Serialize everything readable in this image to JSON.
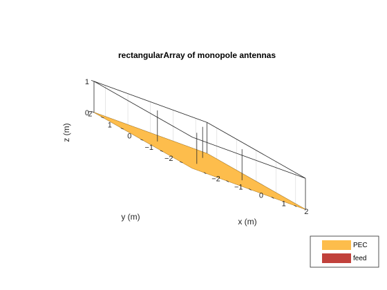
{
  "chart_data": {
    "type": "3d-surface",
    "title": "rectangularArray of monopole antennas",
    "xlabel": "x (m)",
    "ylabel": "y (m)",
    "zlabel": "z (m)",
    "xlim": [
      -2.5,
      2.5
    ],
    "ylim": [
      -2.5,
      2.5
    ],
    "zlim": [
      0,
      1
    ],
    "x_ticks": [
      -2,
      -1,
      0,
      1,
      2
    ],
    "y_ticks": [
      -2,
      -1,
      0,
      1,
      2
    ],
    "z_ticks": [
      0,
      1
    ],
    "grid": true,
    "ground_plane": {
      "x": [
        -2.5,
        2.5
      ],
      "y": [
        -2.5,
        2.5
      ],
      "z": 0,
      "material": "PEC"
    },
    "monopoles": [
      {
        "x": -1,
        "y": -1,
        "height": 1
      },
      {
        "x": 1,
        "y": -1,
        "height": 1
      },
      {
        "x": -1,
        "y": 1,
        "height": 1
      },
      {
        "x": 1,
        "y": 1,
        "height": 1
      }
    ],
    "legend": {
      "position": "bottom-right",
      "entries": [
        {
          "label": "PEC",
          "color": "#fdbd4c"
        },
        {
          "label": "feed",
          "color": "#c1413b"
        }
      ]
    },
    "colors": {
      "pec": "#fdbd4c",
      "antenna": "#000000"
    }
  }
}
